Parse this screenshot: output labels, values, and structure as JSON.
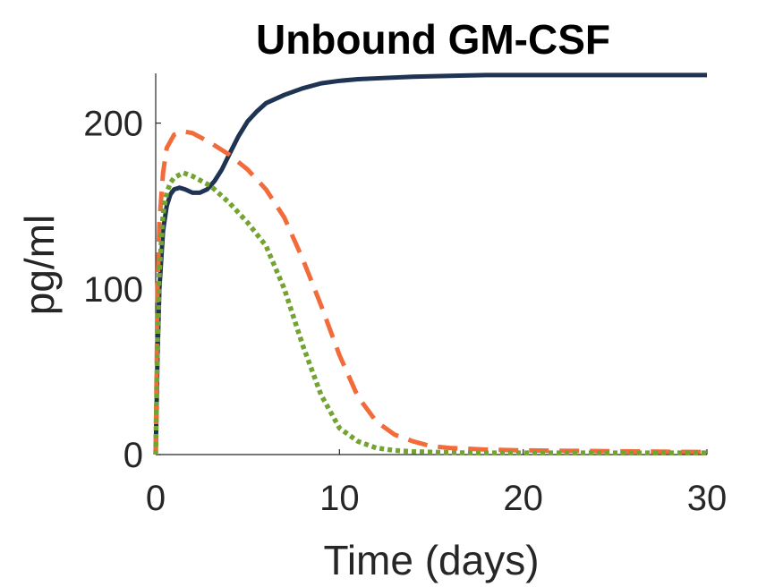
{
  "chart_data": {
    "type": "line",
    "title": "Unbound GM-CSF",
    "xlabel": "Time (days)",
    "ylabel": "pg/ml",
    "xlim": [
      0,
      30
    ],
    "ylim": [
      0,
      230
    ],
    "xticks": [
      0,
      10,
      20,
      30
    ],
    "yticks": [
      0,
      100,
      200
    ],
    "grid": false,
    "legend": "none",
    "series": [
      {
        "color": "#1f3352",
        "style": "solid",
        "x": [
          0,
          0.1,
          0.2,
          0.4,
          0.6,
          0.8,
          1,
          1.3,
          1.6,
          2,
          2.4,
          2.8,
          3.2,
          3.6,
          4,
          4.5,
          5,
          5.5,
          6,
          7,
          8,
          9,
          10,
          11,
          12,
          14,
          16,
          18,
          20,
          25,
          30
        ],
        "y": [
          0,
          60,
          100,
          135,
          150,
          157,
          160,
          161,
          160,
          158,
          158,
          160,
          165,
          172,
          181,
          192,
          201,
          207,
          212,
          217,
          221,
          224,
          225.5,
          226.5,
          227,
          228,
          228.5,
          229,
          229,
          229,
          229
        ]
      },
      {
        "color": "#f26b3a",
        "style": "dashed",
        "x": [
          0,
          0.1,
          0.2,
          0.4,
          0.6,
          1,
          1.5,
          2,
          2.5,
          3,
          4,
          5,
          6,
          7,
          8,
          9,
          10,
          11,
          12,
          13,
          14,
          15,
          16,
          18,
          20,
          25,
          30
        ],
        "y": [
          0,
          100,
          140,
          170,
          185,
          193,
          195,
          194,
          191,
          188,
          181,
          172,
          160,
          143,
          118,
          90,
          60,
          35,
          20,
          12,
          8,
          5,
          4,
          3,
          2.5,
          2,
          1.5
        ]
      },
      {
        "color": "#73a332",
        "style": "dotted",
        "x": [
          0,
          0.1,
          0.2,
          0.4,
          0.6,
          0.8,
          1,
          1.5,
          2,
          2.5,
          3,
          4,
          5,
          6,
          7,
          8,
          9,
          10,
          11,
          12,
          13,
          14,
          15,
          17,
          20,
          25,
          30
        ],
        "y": [
          0,
          70,
          110,
          145,
          158,
          164,
          167,
          170,
          168,
          165,
          162,
          152,
          140,
          126,
          100,
          66,
          36,
          16,
          8,
          4,
          2.5,
          1.8,
          1.5,
          1,
          1,
          1,
          1
        ]
      }
    ]
  }
}
